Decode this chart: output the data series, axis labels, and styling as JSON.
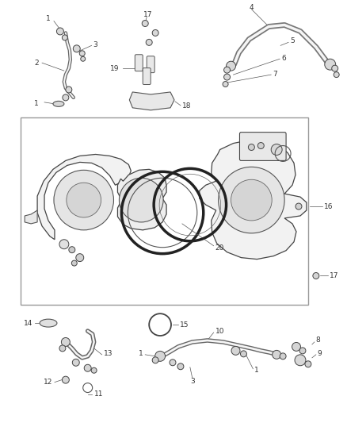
{
  "bg_color": "#ffffff",
  "fig_width": 4.38,
  "fig_height": 5.33,
  "dpi": 100,
  "line_color": "#555555",
  "dark_color": "#222222",
  "box_color": "#888888",
  "label_color": "#333333",
  "label_fontsize": 6.5,
  "lw_pipe": 2.2,
  "lw_leader": 0.5
}
